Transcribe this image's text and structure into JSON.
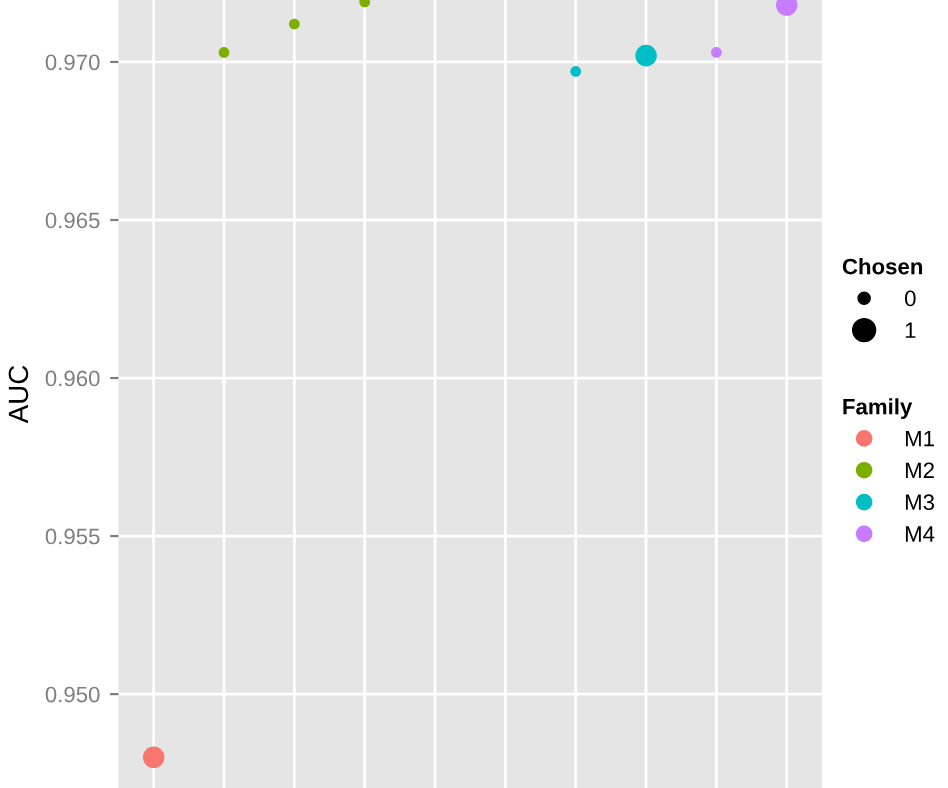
{
  "chart_data": {
    "type": "bubble",
    "ylabel": "AUC",
    "categories": [
      null,
      null,
      null,
      null,
      null,
      null,
      null,
      null,
      null,
      null
    ],
    "series": [
      {
        "name": "M1",
        "color": "#f8766d",
        "values": [
          0.948,
          null,
          null,
          null,
          null,
          null,
          null,
          null,
          null,
          null
        ],
        "sizes": [
          1,
          null,
          null,
          null,
          null,
          null,
          null,
          null,
          null,
          null
        ]
      },
      {
        "name": "M2",
        "color": "#7cae00",
        "values": [
          null,
          0.9703,
          0.9712,
          0.9719,
          null,
          null,
          null,
          null,
          null,
          null
        ],
        "sizes": [
          null,
          0.25,
          0.25,
          0.25,
          null,
          null,
          null,
          null,
          null,
          null
        ]
      },
      {
        "name": "M3",
        "color": "#00bfc4",
        "values": [
          null,
          null,
          null,
          null,
          null,
          null,
          0.9697,
          0.9702,
          null,
          null
        ],
        "sizes": [
          null,
          null,
          null,
          null,
          null,
          null,
          0.25,
          1,
          null,
          null
        ]
      },
      {
        "name": "M4",
        "color": "#c77cff",
        "values": [
          null,
          null,
          null,
          null,
          null,
          null,
          null,
          null,
          0.9703,
          0.9718
        ],
        "sizes": [
          null,
          null,
          null,
          null,
          null,
          null,
          null,
          null,
          0.25,
          1
        ]
      }
    ],
    "size_legend": [
      {
        "value": 0.25,
        "label": "0"
      },
      {
        "value": 1,
        "label": "1"
      }
    ],
    "annotations": [
      "Chosen"
    ],
    "legend_title": "Family",
    "ylim": [
      0.94703,
      0.97196
    ],
    "yticks": [
      {
        "value": 0.95,
        "label": "0.950"
      },
      {
        "value": 0.955,
        "label": "0.955"
      },
      {
        "value": 0.96,
        "label": "0.960"
      },
      {
        "value": 0.965,
        "label": "0.965"
      },
      {
        "value": 0.97,
        "label": "0.970"
      }
    ],
    "tick_labels": "y",
    "grid": true,
    "legend": "right",
    "marker": "circle"
  }
}
